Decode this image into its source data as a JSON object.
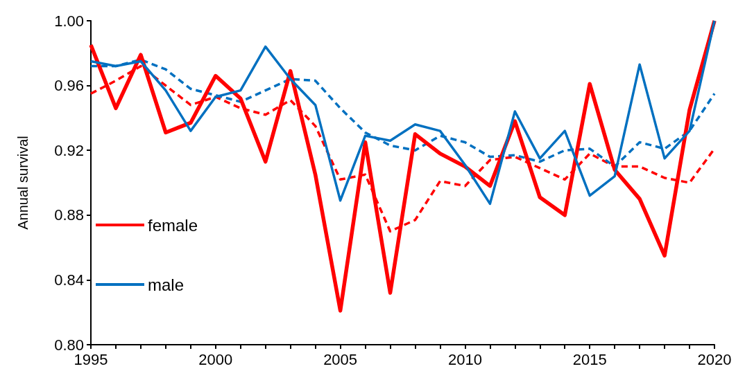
{
  "chart_data": {
    "type": "line",
    "ylabel": "Annual survival",
    "x": [
      1995,
      1996,
      1997,
      1998,
      1999,
      2000,
      2001,
      2002,
      2003,
      2004,
      2005,
      2006,
      2007,
      2008,
      2009,
      2010,
      2011,
      2012,
      2013,
      2014,
      2015,
      2016,
      2017,
      2018,
      2019,
      2020
    ],
    "series": [
      {
        "name": "female",
        "color": "#ff0000",
        "line_style": "solid",
        "values": [
          0.985,
          0.946,
          0.979,
          0.931,
          0.937,
          0.966,
          0.952,
          0.913,
          0.969,
          0.905,
          0.821,
          0.925,
          0.832,
          0.93,
          0.918,
          0.91,
          0.898,
          0.938,
          0.891,
          0.88,
          0.961,
          0.908,
          0.89,
          0.855,
          0.945,
          1.0
        ]
      },
      {
        "name": "male",
        "color": "#0070c0",
        "line_style": "solid",
        "values": [
          0.975,
          0.972,
          0.975,
          0.957,
          0.932,
          0.953,
          0.957,
          0.984,
          0.964,
          0.948,
          0.889,
          0.929,
          0.926,
          0.936,
          0.932,
          0.911,
          0.887,
          0.944,
          0.915,
          0.932,
          0.892,
          0.904,
          0.973,
          0.915,
          0.932,
          1.0
        ]
      },
      {
        "color": "#ff0000",
        "line_style": "dashed",
        "values": [
          0.955,
          0.963,
          0.972,
          0.96,
          0.948,
          0.953,
          0.946,
          0.942,
          0.951,
          0.935,
          0.902,
          0.905,
          0.87,
          0.877,
          0.901,
          0.898,
          0.914,
          0.916,
          0.909,
          0.902,
          0.918,
          0.91,
          0.91,
          0.903,
          0.9,
          0.921
        ]
      },
      {
        "color": "#0070c0",
        "line_style": "dashed",
        "values": [
          0.972,
          0.972,
          0.976,
          0.97,
          0.958,
          0.954,
          0.95,
          0.957,
          0.964,
          0.963,
          0.946,
          0.931,
          0.923,
          0.92,
          0.929,
          0.925,
          0.916,
          0.917,
          0.913,
          0.92,
          0.921,
          0.91,
          0.925,
          0.921,
          0.932,
          0.955
        ]
      }
    ],
    "xlim": [
      1995,
      2020
    ],
    "xticks": [
      1995,
      {
        "value": 1996,
        "label": null
      },
      {
        "value": 1997,
        "label": null
      },
      {
        "value": 1998,
        "label": null
      },
      {
        "value": 1999,
        "label": null
      },
      2000,
      {
        "value": 2001,
        "label": null
      },
      {
        "value": 2002,
        "label": null
      },
      {
        "value": 2003,
        "label": null
      },
      {
        "value": 2004,
        "label": null
      },
      2005,
      {
        "value": 2006,
        "label": null
      },
      {
        "value": 2007,
        "label": null
      },
      {
        "value": 2008,
        "label": null
      },
      {
        "value": 2009,
        "label": null
      },
      2010,
      {
        "value": 2011,
        "label": null
      },
      {
        "value": 2012,
        "label": null
      },
      {
        "value": 2013,
        "label": null
      },
      {
        "value": 2014,
        "label": null
      },
      2015,
      {
        "value": 2016,
        "label": null
      },
      {
        "value": 2017,
        "label": null
      },
      {
        "value": 2018,
        "label": null
      },
      {
        "value": 2019,
        "label": null
      },
      2020
    ],
    "ylim": [
      0.8,
      1.0
    ],
    "yticks": [
      {
        "value": 0.8,
        "label": "0.80"
      },
      {
        "value": 0.84,
        "label": "0.84"
      },
      {
        "value": 0.88,
        "label": "0.88"
      },
      {
        "value": 0.92,
        "label": "0.92"
      },
      {
        "value": 0.96,
        "label": "0.96"
      },
      {
        "value": 1.0,
        "label": "1.00"
      }
    ],
    "grid": false,
    "legend": "left",
    "marker": "none"
  }
}
